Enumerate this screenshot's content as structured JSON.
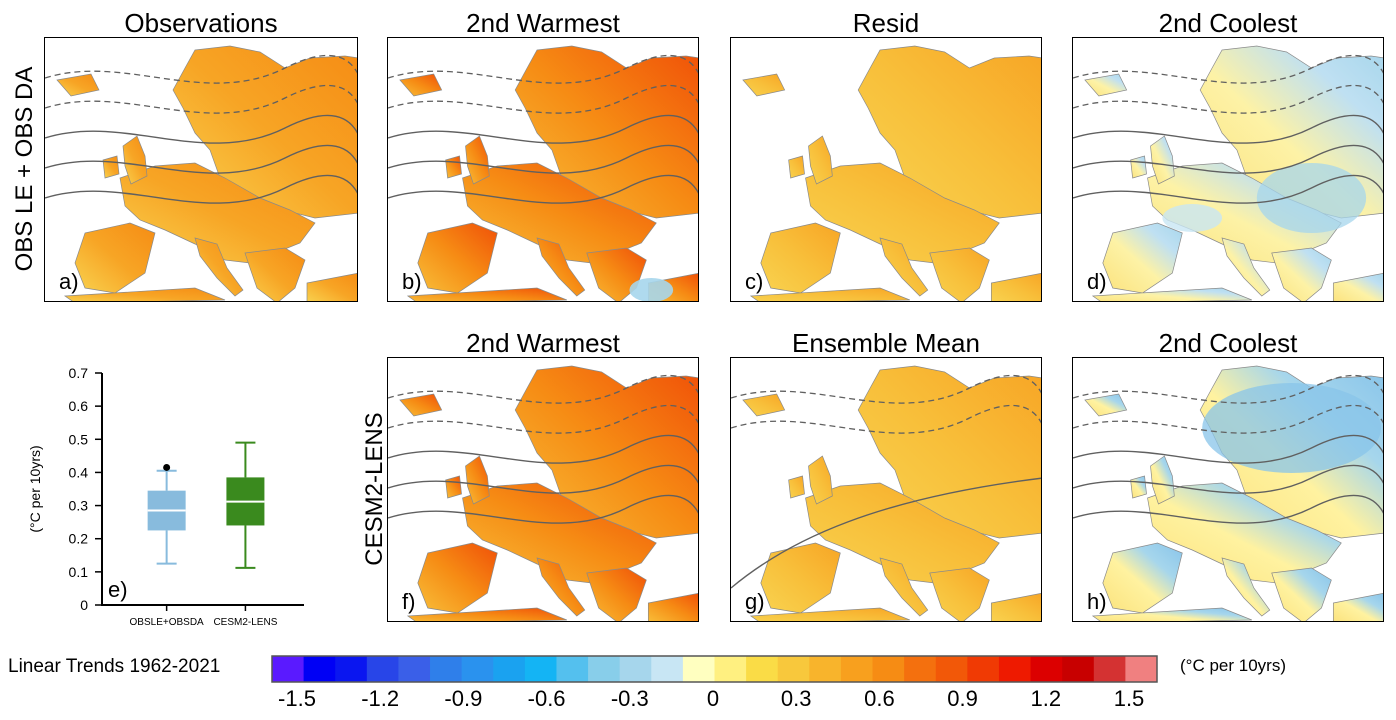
{
  "panels": [
    {
      "id": "a",
      "title": "Observations",
      "label": "a)",
      "variant": "obs",
      "intensity": 0.62
    },
    {
      "id": "b",
      "title": "2nd Warmest",
      "label": "b)",
      "variant": "warm",
      "intensity": 0.85
    },
    {
      "id": "c",
      "title": "Resid",
      "label": "c)",
      "variant": "resid",
      "intensity": 0.45
    },
    {
      "id": "d",
      "title": "2nd Coolest",
      "label": "d)",
      "variant": "cool",
      "intensity": 0.15
    },
    {
      "id": "f",
      "title": "2nd Warmest",
      "label": "f)",
      "variant": "warm2",
      "intensity": 0.9
    },
    {
      "id": "g",
      "title": "Ensemble Mean",
      "label": "g)",
      "variant": "mean",
      "intensity": 0.5
    },
    {
      "id": "h",
      "title": "2nd Coolest",
      "label": "h)",
      "variant": "cool2",
      "intensity": 0.1
    }
  ],
  "row_labels": {
    "top": "OBS LE + OBS DA",
    "bottom": "CESM2-LENS"
  },
  "chart_data": {
    "type": "box",
    "panel_label": "e)",
    "ylabel": "(°C per 10yrs)",
    "ylim": [
      0,
      0.7
    ],
    "yticks": [
      "0",
      "0.1",
      "0.2",
      "0.3",
      "0.4",
      "0.5",
      "0.6",
      "0.7"
    ],
    "categories": [
      "OBSLE+OBSDA",
      "CESM2-LENS"
    ],
    "boxes": [
      {
        "name": "OBSLE+OBSDA",
        "whisker_low": 0.125,
        "q1": 0.225,
        "median": 0.285,
        "q3": 0.345,
        "whisker_high": 0.405,
        "outliers": [
          0.415
        ],
        "color": "#88bbdd"
      },
      {
        "name": "CESM2-LENS",
        "whisker_low": 0.112,
        "q1": 0.24,
        "median": 0.312,
        "q3": 0.385,
        "whisker_high": 0.49,
        "outliers": [],
        "color": "#3a8a1e"
      }
    ]
  },
  "colorbar": {
    "title": "Linear Trends 1962-2021",
    "unit": "(°C per 10yrs)",
    "ticks": [
      "-1.5",
      "-1.2",
      "-0.9",
      "-0.6",
      "-0.3",
      "0",
      "0.3",
      "0.6",
      "0.9",
      "1.2",
      "1.5"
    ],
    "colors": [
      "#5a1aff",
      "#0000f5",
      "#0a16f0",
      "#2845e8",
      "#3a5fe8",
      "#2f7fea",
      "#2a92ee",
      "#1aa2f0",
      "#14b4f4",
      "#54c0ee",
      "#88ceea",
      "#a6d6ec",
      "#c8e6f4",
      "#ffffc0",
      "#fff080",
      "#fadc46",
      "#f8c83c",
      "#f8b42c",
      "#f8a01e",
      "#f68c14",
      "#f4700e",
      "#f25808",
      "#f03a04",
      "#ee1a00",
      "#dc0000",
      "#c80000",
      "#d43232",
      "#f08080"
    ]
  }
}
